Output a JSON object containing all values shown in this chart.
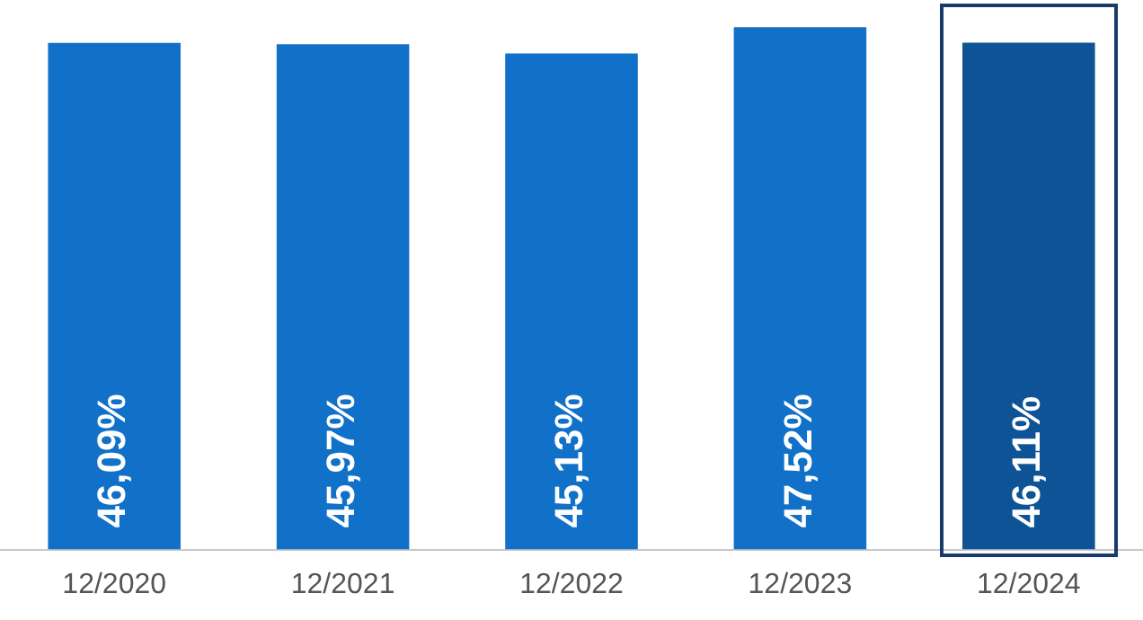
{
  "chart_data": {
    "type": "bar",
    "categories": [
      "12/2020",
      "12/2021",
      "12/2022",
      "12/2023",
      "12/2024"
    ],
    "values": [
      46.09,
      45.97,
      45.13,
      47.52,
      46.11
    ],
    "colors": [
      "#1170c8",
      "#1170c8",
      "#1170c8",
      "#1170c8",
      "#0d5396"
    ],
    "value_labels": [
      "46,09%",
      "45,97%",
      "45,13%",
      "47,52%",
      "46,11%"
    ],
    "grid": false,
    "legend": false
  }
}
